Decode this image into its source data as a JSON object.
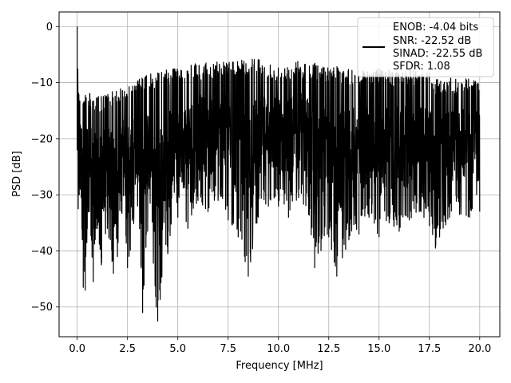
{
  "chart_data": {
    "type": "line",
    "xlabel": "Frequency [MHz]",
    "ylabel": "PSD [dB]",
    "xlim": [
      -0.9,
      21.0
    ],
    "ylim": [
      -55.3,
      2.6
    ],
    "xticks": [
      0.0,
      2.5,
      5.0,
      7.5,
      10.0,
      12.5,
      15.0,
      17.5,
      20.0
    ],
    "xtick_labels": [
      "0.0",
      "2.5",
      "5.0",
      "7.5",
      "10.0",
      "12.5",
      "15.0",
      "17.5",
      "20.0"
    ],
    "yticks": [
      0,
      -10,
      -20,
      -30,
      -40,
      -50
    ],
    "ytick_labels": [
      "0",
      "−10",
      "−20",
      "−30",
      "−40",
      "−50"
    ],
    "grid": true,
    "legend_position": "top-right",
    "legend_lines": [
      "ENOB: -4.04 bits",
      "SNR: -22.52 dB",
      "SINAD: -22.55 dB",
      "SFDR: 1.08"
    ],
    "series": [
      {
        "color": "#000000",
        "x": [
          0.0,
          0.05,
          0.1,
          0.15,
          0.2,
          0.3,
          0.4,
          0.5,
          0.6,
          0.8,
          1.0,
          1.2,
          1.5,
          1.8,
          2.0,
          2.2,
          2.5,
          3.0,
          3.25,
          3.5,
          4.0,
          4.5,
          5.0,
          5.5,
          6.0,
          6.5,
          7.0,
          7.5,
          8.0,
          8.5,
          9.0,
          9.5,
          10.0,
          10.5,
          11.0,
          11.5,
          11.8,
          12.5,
          12.9,
          13.5,
          14.0,
          14.5,
          15.0,
          15.5,
          16.0,
          16.5,
          17.0,
          17.5,
          17.8,
          18.5,
          19.0,
          19.5,
          20.0
        ],
        "peak": [
          0.0,
          -8.0,
          -12.0,
          -12.5,
          -13.0,
          -12.0,
          -11.5,
          -12.0,
          -11.5,
          -12.0,
          -12.5,
          -12.0,
          -12.0,
          -11.5,
          -11.0,
          -10.5,
          -10.5,
          -9.5,
          -9.0,
          -8.5,
          -8.0,
          -7.5,
          -7.5,
          -7.0,
          -6.5,
          -6.5,
          -6.0,
          -6.0,
          -6.0,
          -6.0,
          -5.5,
          -6.5,
          -7.0,
          -6.5,
          -6.0,
          -6.5,
          -6.5,
          -7.0,
          -7.0,
          -7.5,
          -8.0,
          -7.5,
          -7.5,
          -7.5,
          -8.0,
          -7.5,
          -8.0,
          -8.0,
          -9.5,
          -9.0,
          -9.5,
          -9.0,
          -9.5
        ],
        "trough": [
          -22.0,
          -32.5,
          -30.0,
          -29.0,
          -30.5,
          -46.5,
          -47.0,
          -36.0,
          -33.0,
          -45.5,
          -36.0,
          -42.5,
          -36.0,
          -44.0,
          -41.0,
          -33.0,
          -43.0,
          -32.0,
          -51.0,
          -36.5,
          -52.5,
          -40.5,
          -34.0,
          -36.0,
          -31.0,
          -33.0,
          -31.0,
          -34.5,
          -37.5,
          -44.5,
          -34.0,
          -32.0,
          -32.0,
          -34.0,
          -30.5,
          -33.5,
          -43.0,
          -37.5,
          -44.5,
          -38.0,
          -37.0,
          -34.0,
          -37.5,
          -35.0,
          -36.5,
          -34.5,
          -33.0,
          -35.5,
          -39.5,
          -34.0,
          -33.5,
          -34.0,
          -33.0
        ]
      }
    ]
  }
}
